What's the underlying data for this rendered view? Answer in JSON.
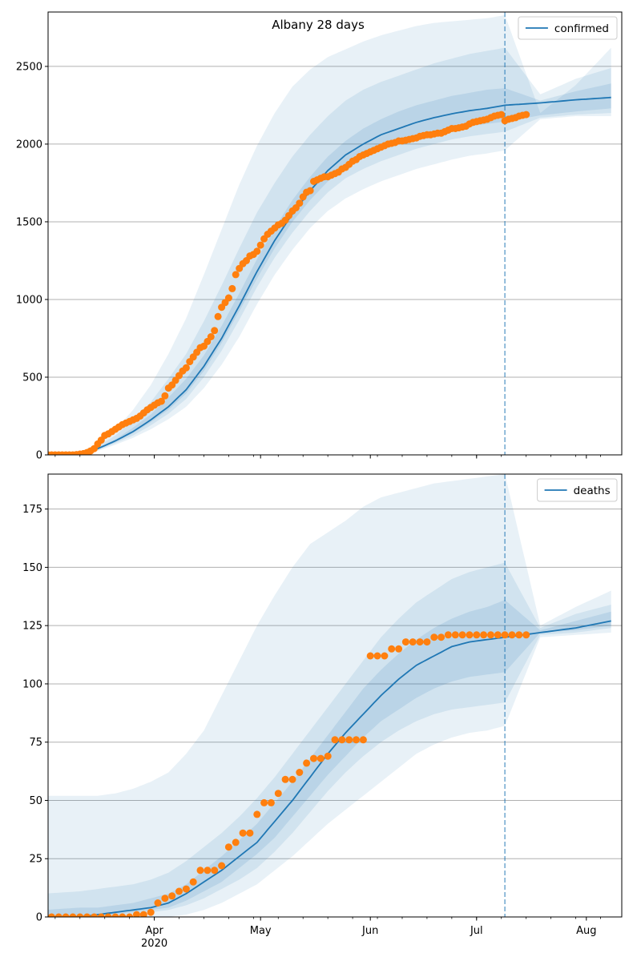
{
  "figure_title": "Albany 28 days",
  "chart_data": [
    {
      "type": "line",
      "legend": {
        "label": "confirmed",
        "position": "top-right"
      },
      "ylim": [
        0,
        2850
      ],
      "yticks": [
        0,
        500,
        1000,
        1500,
        2000,
        2500
      ],
      "grid": "y",
      "colors": {
        "line": "#1f77b4",
        "points": "#ff7f0e",
        "band": "#1f77b4",
        "cutoff": "#1f77b4"
      },
      "cutoff_day": 130,
      "model": {
        "x": [
          0,
          10,
          15,
          20,
          25,
          30,
          35,
          40,
          45,
          50,
          55,
          60,
          65,
          70,
          75,
          80,
          85,
          90,
          95,
          100,
          105,
          110,
          115,
          120,
          125,
          130,
          140,
          150,
          160
        ],
        "y": [
          0,
          10,
          40,
          90,
          150,
          225,
          310,
          420,
          570,
          750,
          960,
          1180,
          1380,
          1550,
          1700,
          1830,
          1930,
          2000,
          2060,
          2100,
          2140,
          2170,
          2195,
          2215,
          2230,
          2250,
          2265,
          2285,
          2300
        ],
        "bands": [
          {
            "lo": [
              0,
              3,
              25,
              65,
              110,
              165,
              230,
              310,
              430,
              580,
              760,
              970,
              1160,
              1320,
              1460,
              1570,
              1650,
              1710,
              1760,
              1800,
              1840,
              1870,
              1900,
              1925,
              1940,
              1960,
              2160,
              2180,
              2180
            ],
            "hi": [
              0,
              20,
              70,
              160,
              290,
              450,
              650,
              880,
              1160,
              1450,
              1740,
              1990,
              2200,
              2370,
              2480,
              2560,
              2610,
              2660,
              2700,
              2730,
              2760,
              2780,
              2790,
              2800,
              2810,
              2830,
              2200,
              2380,
              2620
            ]
          },
          {
            "lo": [
              0,
              5,
              30,
              75,
              125,
              190,
              265,
              360,
              500,
              670,
              870,
              1080,
              1270,
              1430,
              1570,
              1690,
              1780,
              1840,
              1890,
              1930,
              1970,
              2000,
              2030,
              2050,
              2065,
              2080,
              2170,
              2190,
              2200
            ],
            "hi": [
              0,
              15,
              55,
              125,
              220,
              340,
              490,
              650,
              860,
              1090,
              1330,
              1560,
              1750,
              1920,
              2060,
              2180,
              2280,
              2350,
              2400,
              2440,
              2480,
              2520,
              2550,
              2580,
              2600,
              2620,
              2320,
              2420,
              2490
            ]
          },
          {
            "lo": [
              0,
              7,
              35,
              82,
              140,
              210,
              290,
              395,
              540,
              720,
              925,
              1135,
              1330,
              1500,
              1640,
              1760,
              1855,
              1920,
              1970,
              2010,
              2045,
              2075,
              2100,
              2115,
              2130,
              2145,
              2185,
              2210,
              2230
            ],
            "hi": [
              0,
              12,
              45,
              100,
              175,
              260,
              370,
              490,
              640,
              830,
              1040,
              1260,
              1460,
              1640,
              1790,
              1920,
              2020,
              2100,
              2160,
              2210,
              2250,
              2280,
              2310,
              2330,
              2350,
              2360,
              2280,
              2340,
              2390
            ]
          }
        ]
      },
      "observed": {
        "x": [
          0,
          1,
          2,
          3,
          4,
          5,
          6,
          7,
          8,
          9,
          10,
          11,
          12,
          13,
          14,
          15,
          16,
          17,
          18,
          19,
          20,
          21,
          22,
          23,
          24,
          25,
          26,
          27,
          28,
          29,
          30,
          31,
          32,
          33,
          34,
          35,
          36,
          37,
          38,
          39,
          40,
          41,
          42,
          43,
          44,
          45,
          46,
          47,
          48,
          49,
          50,
          51,
          52,
          53,
          54,
          55,
          56,
          57,
          58,
          59,
          60,
          61,
          62,
          63,
          64,
          65,
          66,
          67,
          68,
          69,
          70,
          71,
          72,
          73,
          74,
          75,
          76,
          77,
          78,
          79,
          80,
          81,
          82,
          83,
          84,
          85,
          86,
          87,
          88,
          89,
          90,
          91,
          92,
          93,
          94,
          95,
          96,
          97,
          98,
          99,
          100,
          101,
          102,
          103,
          104,
          105,
          106,
          107,
          108,
          109,
          110,
          111,
          112,
          113,
          114,
          115,
          116,
          117,
          118,
          119,
          120,
          121,
          122,
          123,
          124,
          125,
          126,
          127,
          128,
          129,
          130,
          131,
          132,
          133,
          134,
          135,
          136
        ],
        "y": [
          0,
          0,
          0,
          0,
          0,
          0,
          0,
          0,
          0,
          2,
          5,
          8,
          15,
          25,
          40,
          70,
          95,
          125,
          135,
          150,
          165,
          180,
          195,
          205,
          215,
          225,
          235,
          250,
          270,
          290,
          305,
          320,
          335,
          345,
          380,
          430,
          450,
          480,
          510,
          540,
          560,
          600,
          630,
          660,
          690,
          700,
          730,
          760,
          800,
          890,
          950,
          980,
          1010,
          1070,
          1160,
          1200,
          1230,
          1250,
          1280,
          1290,
          1310,
          1350,
          1390,
          1420,
          1440,
          1460,
          1480,
          1490,
          1510,
          1540,
          1570,
          1590,
          1620,
          1660,
          1690,
          1700,
          1760,
          1770,
          1780,
          1790,
          1790,
          1800,
          1810,
          1820,
          1840,
          1850,
          1870,
          1890,
          1900,
          1920,
          1930,
          1940,
          1950,
          1960,
          1970,
          1980,
          1990,
          2000,
          2005,
          2010,
          2020,
          2020,
          2025,
          2030,
          2035,
          2040,
          2050,
          2055,
          2060,
          2060,
          2065,
          2070,
          2070,
          2080,
          2090,
          2100,
          2100,
          2105,
          2110,
          2115,
          2130,
          2140,
          2145,
          2150,
          2155,
          2160,
          2170,
          2180,
          2185,
          2190,
          2150,
          2160,
          2165,
          2170,
          2180,
          2185,
          2190
        ]
      }
    },
    {
      "type": "line",
      "legend": {
        "label": "deaths",
        "position": "top-right"
      },
      "ylim": [
        0,
        190
      ],
      "yticks": [
        0,
        25,
        50,
        75,
        100,
        125,
        150,
        175
      ],
      "grid": "y",
      "colors": {
        "line": "#1f77b4",
        "points": "#ff7f0e",
        "band": "#1f77b4",
        "cutoff": "#1f77b4"
      },
      "cutoff_day": 130,
      "xticks": [
        {
          "day": 31,
          "label": "Apr",
          "sublabel": "2020"
        },
        {
          "day": 61,
          "label": "May"
        },
        {
          "day": 92,
          "label": "Jun"
        },
        {
          "day": 122,
          "label": "Jul"
        },
        {
          "day": 153,
          "label": "Aug"
        }
      ],
      "xlim": [
        1,
        163
      ],
      "model": {
        "x": [
          0,
          10,
          15,
          20,
          25,
          30,
          35,
          40,
          45,
          50,
          55,
          60,
          65,
          70,
          75,
          80,
          85,
          90,
          95,
          100,
          105,
          110,
          115,
          120,
          125,
          130,
          140,
          150,
          160
        ],
        "y": [
          0,
          0,
          1,
          2,
          3,
          4,
          6,
          10,
          15,
          20,
          26,
          32,
          41,
          50,
          60,
          70,
          79,
          87,
          95,
          102,
          108,
          112,
          116,
          118,
          119,
          120,
          122,
          124,
          127
        ],
        "bands": [
          {
            "lo": [
              0,
              0,
              0,
              0,
              0,
              0,
              0,
              1,
              3,
              6,
              10,
              14,
              20,
              26,
              33,
              40,
              46,
              52,
              58,
              64,
              70,
              74,
              77,
              79,
              80,
              82,
              120,
              121,
              122
            ],
            "hi": [
              52,
              52,
              52,
              53,
              55,
              58,
              62,
              70,
              80,
              95,
              110,
              125,
              138,
              150,
              160,
              165,
              170,
              176,
              180,
              182,
              184,
              186,
              187,
              188,
              189,
              190,
              125,
              133,
              140
            ]
          },
          {
            "lo": [
              0,
              0,
              0,
              0,
              1,
              2,
              3,
              5,
              8,
              12,
              16,
              21,
              28,
              36,
              45,
              54,
              62,
              69,
              75,
              80,
              84,
              87,
              89,
              90,
              91,
              92,
              121,
              122,
              124
            ],
            "hi": [
              10,
              11,
              12,
              13,
              14,
              16,
              19,
              24,
              30,
              36,
              43,
              51,
              60,
              70,
              80,
              90,
              100,
              110,
              120,
              128,
              135,
              140,
              145,
              148,
              150,
              152,
              124,
              130,
              134
            ]
          },
          {
            "lo": [
              0,
              0,
              0,
              1,
              2,
              3,
              4,
              7,
              11,
              15,
              21,
              27,
              34,
              43,
              52,
              61,
              69,
              77,
              84,
              89,
              94,
              98,
              101,
              103,
              104,
              105,
              122,
              123,
              125
            ],
            "hi": [
              3,
              4,
              4,
              5,
              6,
              8,
              10,
              14,
              20,
              26,
              33,
              40,
              49,
              58,
              68,
              78,
              88,
              98,
              106,
              113,
              119,
              124,
              128,
              131,
              133,
              136,
              123,
              127,
              131
            ]
          }
        ]
      },
      "observed": {
        "x": [
          0,
          2,
          4,
          6,
          8,
          10,
          12,
          14,
          16,
          18,
          20,
          22,
          24,
          26,
          28,
          30,
          32,
          34,
          36,
          38,
          40,
          42,
          44,
          46,
          48,
          50,
          52,
          54,
          56,
          58,
          60,
          62,
          64,
          66,
          68,
          70,
          72,
          74,
          76,
          78,
          80,
          82,
          84,
          86,
          88,
          90,
          92,
          94,
          96,
          98,
          100,
          102,
          104,
          106,
          108,
          110,
          112,
          114,
          116,
          118,
          120,
          122,
          124,
          126,
          128,
          130,
          132,
          134,
          136
        ],
        "y": [
          0,
          0,
          0,
          0,
          0,
          0,
          0,
          0,
          0,
          0,
          0,
          0,
          0,
          1,
          1,
          2,
          6,
          8,
          9,
          11,
          12,
          15,
          20,
          20,
          20,
          22,
          30,
          32,
          36,
          36,
          44,
          49,
          49,
          53,
          59,
          59,
          62,
          66,
          68,
          68,
          69,
          76,
          76,
          76,
          76,
          76,
          112,
          112,
          112,
          115,
          115,
          118,
          118,
          118,
          118,
          120,
          120,
          121,
          121,
          121,
          121,
          121,
          121,
          121,
          121,
          121,
          121,
          121,
          121
        ]
      }
    }
  ]
}
